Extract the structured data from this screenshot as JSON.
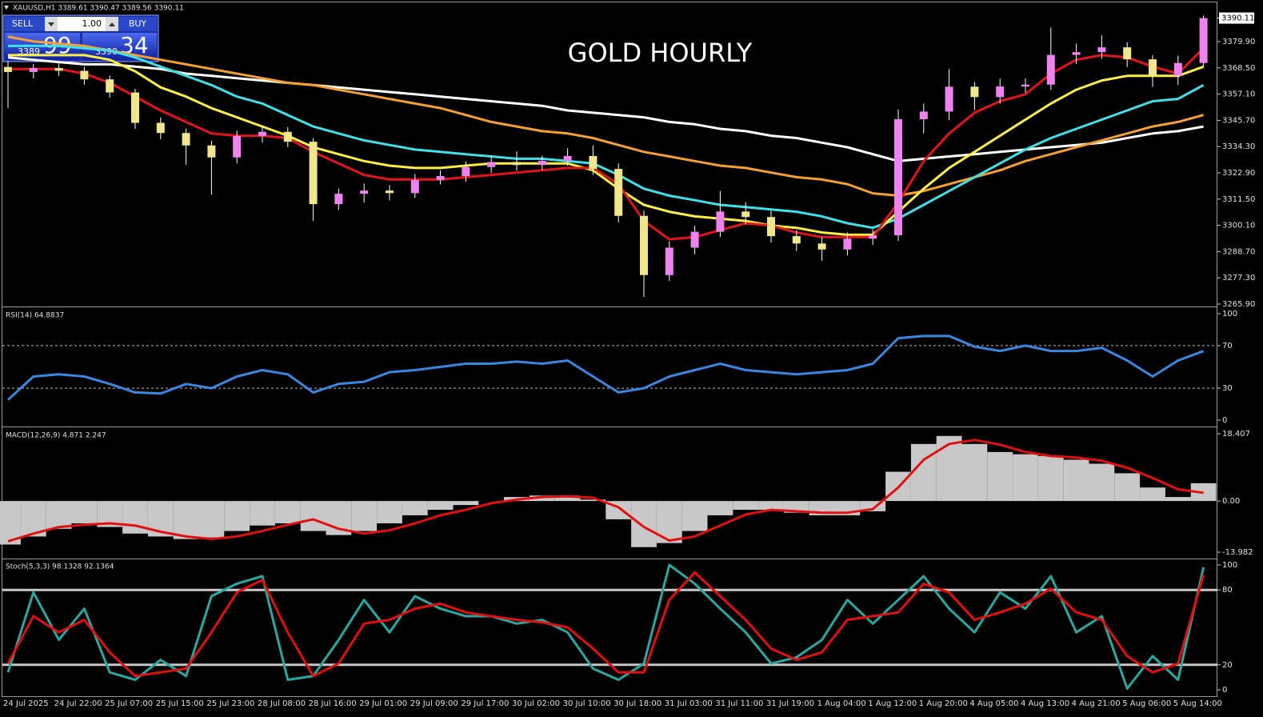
{
  "trade_panel": {
    "sell": "SELL",
    "lots": "1.00",
    "buy": "BUY",
    "bid_big": "3389",
    "bid_small": "99",
    "ask_big": "3390",
    "ask_small": "34"
  },
  "chart_data": [
    {
      "type": "candlestick",
      "title": "GOLD HOURLY",
      "header": "XAUUSD,H1  3389.61 3390.47 3389.56 3390.11",
      "categories": [
        "24 Jul 2025",
        null,
        "24 Jul 22:00",
        null,
        "25 Jul 07:00",
        null,
        "25 Jul 15:00",
        null,
        "25 Jul 23:00",
        null,
        "28 Jul 08:00",
        null,
        "28 Jul 16:00",
        null,
        "29 Jul 01:00",
        null,
        "29 Jul 09:00",
        null,
        "29 Jul 17:00",
        null,
        "30 Jul 02:00",
        null,
        "30 Jul 10:00",
        null,
        "30 Jul 18:00",
        null,
        "31 Jul 03:00",
        null,
        "31 Jul 11:00",
        null,
        "31 Jul 19:00",
        null,
        "1 Aug 04:00",
        null,
        "1 Aug 12:00",
        null,
        "1 Aug 20:00",
        null,
        "4 Aug 05:00",
        null,
        "4 Aug 13:00",
        null,
        "4 Aug 21:00",
        null,
        "5 Aug 06:00",
        null,
        "5 Aug 14:00",
        null
      ],
      "open": [
        3368.9,
        3366.7,
        3368.4,
        3367.2,
        3363.5,
        3357.8,
        3344.6,
        3340.2,
        3334.8,
        3329.6,
        3338.9,
        3340.7,
        3336.4,
        3309.3,
        3313.8,
        3315.2,
        3314.1,
        3319.8,
        3321.5,
        3325.4,
        3327.6,
        3326.3,
        3328.1,
        3330.2,
        3324.6,
        3304.2,
        3278.5,
        3290.4,
        3297.3,
        3306.1,
        3303.7,
        3295.4,
        3292.2,
        3289.6,
        3294.3,
        3295.8,
        3346.2,
        3349.5,
        3360.3,
        3355.8,
        3360.4,
        3361.2,
        3374.1,
        3375.3,
        3377.4,
        3372.2,
        3365.1,
        3370.6
      ],
      "high": [
        3371.5,
        3370.2,
        3370.9,
        3369.0,
        3365.2,
        3359.4,
        3347.0,
        3342.1,
        3336.9,
        3341.2,
        3343.0,
        3342.8,
        3338.0,
        3316.0,
        3318.3,
        3317.6,
        3322.4,
        3324.0,
        3327.9,
        3330.5,
        3332.2,
        3330.4,
        3333.6,
        3334.8,
        3327.0,
        3306.5,
        3293.1,
        3299.9,
        3315.0,
        3310.2,
        3306.4,
        3298.0,
        3295.1,
        3297.0,
        3298.2,
        3350.4,
        3353.0,
        3368.0,
        3362.4,
        3363.8,
        3364.0,
        3386.0,
        3379.0,
        3382.6,
        3379.6,
        3374.0,
        3373.8,
        3391.2
      ],
      "low": [
        3351.0,
        3363.9,
        3365.0,
        3361.2,
        3355.6,
        3342.0,
        3337.5,
        3326.4,
        3313.5,
        3327.0,
        3336.0,
        3334.1,
        3302.0,
        3306.8,
        3310.0,
        3310.9,
        3312.0,
        3317.9,
        3319.0,
        3322.8,
        3323.9,
        3324.2,
        3326.0,
        3322.0,
        3301.4,
        3269.0,
        3276.0,
        3287.5,
        3295.0,
        3300.5,
        3292.6,
        3288.9,
        3284.7,
        3287.0,
        3291.6,
        3293.4,
        3340.0,
        3345.8,
        3350.2,
        3353.0,
        3357.6,
        3358.9,
        3370.1,
        3372.4,
        3368.9,
        3360.2,
        3361.0,
        3369.0
      ],
      "close": [
        3366.7,
        3368.4,
        3367.2,
        3363.5,
        3357.8,
        3344.6,
        3340.2,
        3334.8,
        3329.6,
        3338.9,
        3340.7,
        3336.4,
        3309.3,
        3313.8,
        3315.2,
        3314.1,
        3319.8,
        3321.5,
        3325.4,
        3327.6,
        3326.3,
        3328.1,
        3330.2,
        3324.6,
        3304.2,
        3278.5,
        3290.4,
        3297.3,
        3306.1,
        3303.7,
        3295.4,
        3292.2,
        3289.6,
        3294.3,
        3295.8,
        3346.2,
        3349.5,
        3360.3,
        3355.8,
        3360.4,
        3361.2,
        3374.1,
        3375.3,
        3377.4,
        3372.2,
        3365.1,
        3370.6,
        3390.11
      ],
      "up_color": "#ee82ee",
      "down_color": "#f0e68c",
      "wick_color": "#ffffff",
      "overlays": [
        {
          "color": "#ffffff",
          "values": [
            3373,
            3372,
            3371,
            3370,
            3370,
            3369,
            3368,
            3366,
            3365,
            3364,
            3363,
            3362,
            3361,
            3360,
            3359,
            3358,
            3357,
            3356,
            3355,
            3354,
            3353,
            3352,
            3350,
            3349,
            3348,
            3347,
            3345,
            3344,
            3342,
            3341,
            3339,
            3338,
            3336,
            3334,
            3331,
            3328,
            3329,
            3330,
            3331,
            3332,
            3333,
            3334,
            3335,
            3336,
            3338,
            3340,
            3341,
            3343
          ]
        },
        {
          "color": "#f5a030",
          "values": [
            3382,
            3380,
            3379,
            3378,
            3376,
            3374,
            3372,
            3370,
            3368,
            3366,
            3364,
            3362,
            3361,
            3359,
            3357,
            3355,
            3353,
            3351,
            3348,
            3345,
            3343,
            3341,
            3340,
            3338,
            3335,
            3332,
            3330,
            3328,
            3326,
            3325,
            3323,
            3321,
            3320,
            3318,
            3314,
            3313,
            3315,
            3318,
            3321,
            3324,
            3328,
            3331,
            3334,
            3337,
            3340,
            3343,
            3345,
            3348
          ]
        },
        {
          "color": "#40e0e8",
          "values": [
            3378,
            3378,
            3378,
            3377,
            3376,
            3373,
            3369,
            3365,
            3361,
            3356,
            3353,
            3348,
            3343,
            3340,
            3337,
            3335,
            3333,
            3332,
            3331,
            3330,
            3329,
            3329,
            3328,
            3327,
            3322,
            3316,
            3313,
            3311,
            3309,
            3308,
            3307,
            3306,
            3304,
            3301,
            3299,
            3303,
            3309,
            3315,
            3321,
            3327,
            3333,
            3338,
            3342,
            3346,
            3350,
            3354,
            3355,
            3361
          ]
        },
        {
          "color": "#ffee44",
          "values": [
            3374,
            3374,
            3374,
            3374,
            3372,
            3367,
            3360,
            3356,
            3351,
            3347,
            3343,
            3339,
            3334,
            3331,
            3328,
            3326,
            3325,
            3325,
            3326,
            3327,
            3327,
            3327,
            3327,
            3324,
            3316,
            3309,
            3306,
            3304,
            3303,
            3302,
            3300,
            3299,
            3297,
            3296,
            3296,
            3306,
            3316,
            3325,
            3332,
            3339,
            3346,
            3353,
            3359,
            3363,
            3365,
            3365,
            3365,
            3369
          ]
        },
        {
          "color": "#e0141e",
          "values": [
            3368,
            3368,
            3368,
            3366,
            3362,
            3356,
            3350,
            3345,
            3340,
            3339,
            3339,
            3338,
            3332,
            3327,
            3322,
            3320,
            3320,
            3320,
            3321,
            3322,
            3323,
            3324,
            3325,
            3325,
            3318,
            3302,
            3294,
            3295,
            3298,
            3301,
            3300,
            3297,
            3295,
            3295,
            3295,
            3310,
            3328,
            3340,
            3349,
            3354,
            3357,
            3366,
            3372,
            3374,
            3373,
            3369,
            3366,
            3377
          ]
        }
      ],
      "ylim": [
        3265.2,
        3391.7
      ],
      "yticks": [
        {
          "value": 3265.9,
          "label": "3265.90"
        },
        {
          "value": 3277.3,
          "label": "3277.30"
        },
        {
          "value": 3288.7,
          "label": "3288.70"
        },
        {
          "value": 3300.1,
          "label": "3300.10"
        },
        {
          "value": 3311.5,
          "label": "3311.50"
        },
        {
          "value": 3322.9,
          "label": "3322.90"
        },
        {
          "value": 3334.3,
          "label": "3334.30"
        },
        {
          "value": 3345.7,
          "label": "3345.70"
        },
        {
          "value": 3357.1,
          "label": "3357.10"
        },
        {
          "value": 3368.5,
          "label": "3368.50"
        },
        {
          "value": 3379.9,
          "label": "3379.90"
        }
      ],
      "last_price": {
        "value": 3390.11,
        "label": "3390.11"
      }
    },
    {
      "type": "line",
      "label": "RSI(14) 64.8837",
      "color": "#3a86e0",
      "values": [
        19,
        41,
        43,
        41,
        34,
        26,
        25,
        34,
        30,
        41,
        47,
        43,
        26,
        34,
        36,
        45,
        47,
        50,
        53,
        53,
        55,
        53,
        56,
        41,
        26,
        30,
        41,
        47,
        53,
        47,
        45,
        43,
        45,
        47,
        53,
        77,
        79,
        79,
        69,
        65,
        70,
        65,
        65,
        68,
        56,
        41,
        56,
        64.8837
      ],
      "ylim": [
        0,
        100
      ],
      "yticks": [
        0,
        30,
        70,
        100
      ],
      "levels": [
        30,
        70
      ]
    },
    {
      "type": "macd",
      "label": "MACD(12,26,9) 4.871 2.247",
      "hist_color": "#c8c8c8",
      "signal_color": "#e01010",
      "values": [
        -11.9,
        -9.7,
        -7.6,
        -6.1,
        -7.1,
        -8.9,
        -9.7,
        -10.4,
        -10.0,
        -8.2,
        -6.7,
        -6.1,
        -8.2,
        -9.3,
        -8.2,
        -6.1,
        -3.9,
        -2.4,
        -1.1,
        0,
        1.1,
        1.5,
        1.5,
        0.4,
        -5.0,
        -12.6,
        -11.5,
        -8.2,
        -3.9,
        -2.4,
        -2.4,
        -3.2,
        -3.9,
        -3.9,
        -2.8,
        8.0,
        15.6,
        17.8,
        15.6,
        13.4,
        12.8,
        12.3,
        11.3,
        10.2,
        7.6,
        3.7,
        1.1,
        4.871
      ],
      "signal": [
        -11.0,
        -8.9,
        -7.1,
        -6.5,
        -6.1,
        -6.7,
        -8.4,
        -9.7,
        -10.4,
        -9.7,
        -8.2,
        -6.5,
        -5.0,
        -7.6,
        -8.9,
        -8.0,
        -6.1,
        -3.9,
        -2.4,
        -0.6,
        0.4,
        1.1,
        1.3,
        0.9,
        -1.7,
        -7.1,
        -10.8,
        -9.7,
        -6.7,
        -3.7,
        -2.4,
        -2.8,
        -3.2,
        -3.2,
        -2.2,
        3.7,
        11.3,
        15.6,
        16.7,
        15.4,
        13.4,
        12.3,
        11.9,
        11.0,
        9.1,
        6.3,
        3.2,
        2.247
      ],
      "ylim": [
        -13.982,
        18.407
      ],
      "yticks": [
        -13.982,
        {
          "value": 0,
          "label": "0.00"
        },
        18.407
      ]
    },
    {
      "type": "stochastic",
      "label": "Stoch(5,3,3) 98.1328 92.1364",
      "main_color": "#2aa8a0",
      "signal_color": "#e01010",
      "values": [
        14,
        78,
        40,
        65,
        14,
        8,
        24,
        11,
        75,
        85,
        91,
        8,
        11,
        40,
        72,
        46,
        75,
        65,
        59,
        59,
        53,
        56,
        46,
        17,
        8,
        21,
        100,
        85,
        65,
        46,
        21,
        26,
        40,
        72,
        53,
        72,
        91,
        65,
        46,
        78,
        65,
        91,
        46,
        59,
        1,
        27,
        8,
        98.1328
      ],
      "signal": [
        21,
        59,
        46,
        56,
        30,
        11,
        14,
        17,
        46,
        78,
        88,
        46,
        11,
        21,
        53,
        56,
        65,
        69,
        62,
        59,
        56,
        54,
        50,
        33,
        14,
        14,
        72,
        94,
        75,
        56,
        33,
        24,
        30,
        56,
        59,
        62,
        85,
        78,
        56,
        62,
        69,
        81,
        62,
        56,
        27,
        14,
        21,
        92.1364
      ],
      "ylim": [
        0,
        100
      ],
      "yticks": [
        0,
        20,
        80,
        100
      ],
      "levels": [
        20,
        80
      ]
    }
  ]
}
